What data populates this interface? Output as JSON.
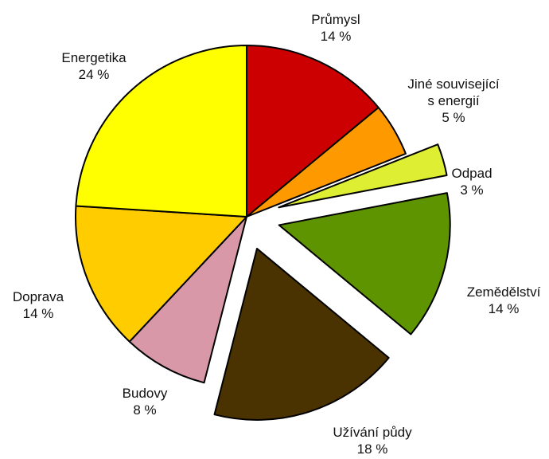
{
  "chart_data": {
    "type": "pie",
    "slices": [
      {
        "label": "Průmysl",
        "value": 14,
        "value_label": "14 %",
        "color": "#cc0000",
        "exploded": false
      },
      {
        "label_lines": [
          "Jiné související",
          "s energií"
        ],
        "value": 5,
        "value_label": "5 %",
        "color": "#ff9900",
        "exploded": false
      },
      {
        "label": "Odpad",
        "value": 3,
        "value_label": "3 %",
        "color": "#ddee33",
        "exploded": true
      },
      {
        "label": "Zemědělství",
        "value": 14,
        "value_label": "14 %",
        "color": "#5e9400",
        "exploded": true
      },
      {
        "label": "Užívání půdy",
        "value": 18,
        "value_label": "18 %",
        "color": "#4a3300",
        "exploded": true
      },
      {
        "label": "Budovy",
        "value": 8,
        "value_label": "8 %",
        "color": "#d898a8",
        "exploded": false
      },
      {
        "label": "Doprava",
        "value": 14,
        "value_label": "14 %",
        "color": "#ffcc00",
        "exploded": false
      },
      {
        "label": "Energetika",
        "value": 24,
        "value_label": "24 %",
        "color": "#ffff00",
        "exploded": false
      }
    ]
  }
}
